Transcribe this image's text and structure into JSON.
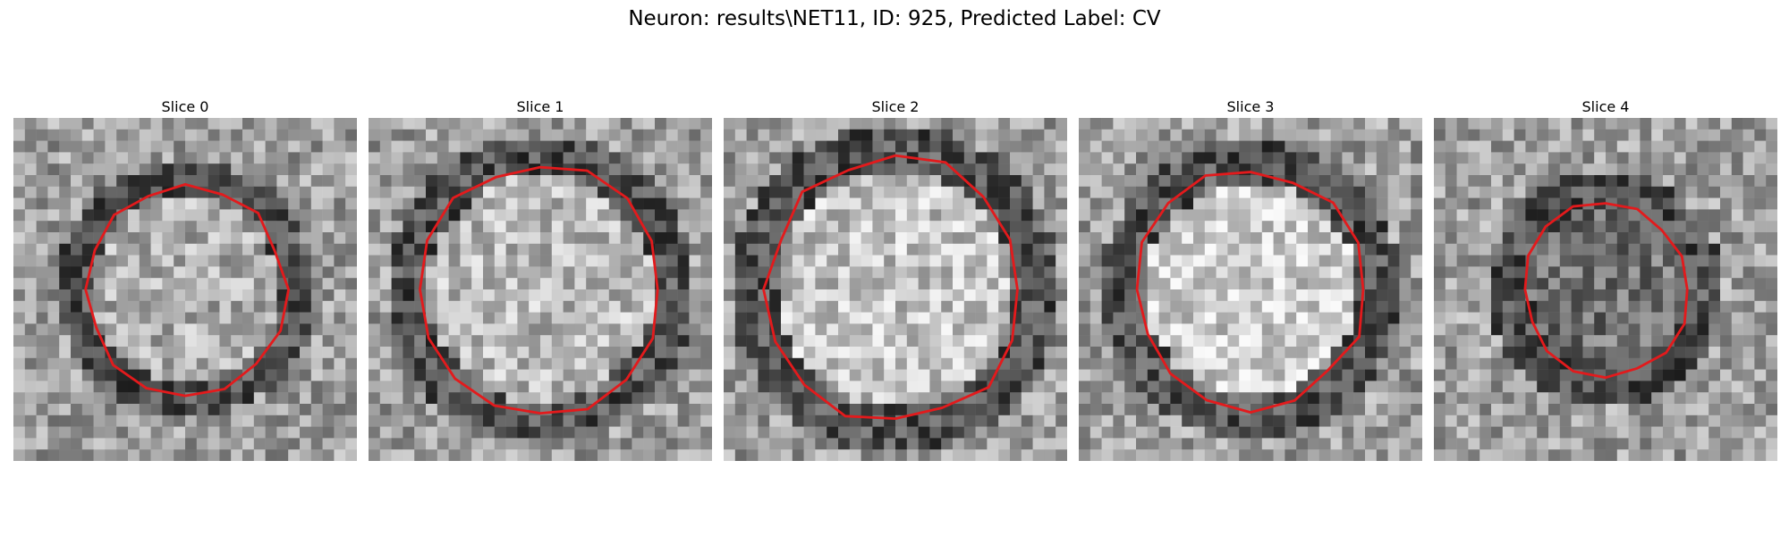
{
  "figure": {
    "title": "Neuron: results\\NET11, ID: 925, Predicted Label: CV",
    "contour_color": "#e31a1c",
    "colormap": "grayscale",
    "panels": [
      {
        "title": "Slice 0",
        "ring_inner": 0.27,
        "ring_outer": 0.38,
        "brightness_inside": 0.68
      },
      {
        "title": "Slice 1",
        "ring_inner": 0.33,
        "ring_outer": 0.45,
        "brightness_inside": 0.72
      },
      {
        "title": "Slice 2",
        "ring_inner": 0.35,
        "ring_outer": 0.48,
        "brightness_inside": 0.76
      },
      {
        "title": "Slice 3",
        "ring_inner": 0.31,
        "ring_outer": 0.44,
        "brightness_inside": 0.8
      },
      {
        "title": "Slice 4",
        "ring_inner": 0.22,
        "ring_outer": 0.34,
        "brightness_inside": 0.45
      }
    ]
  }
}
